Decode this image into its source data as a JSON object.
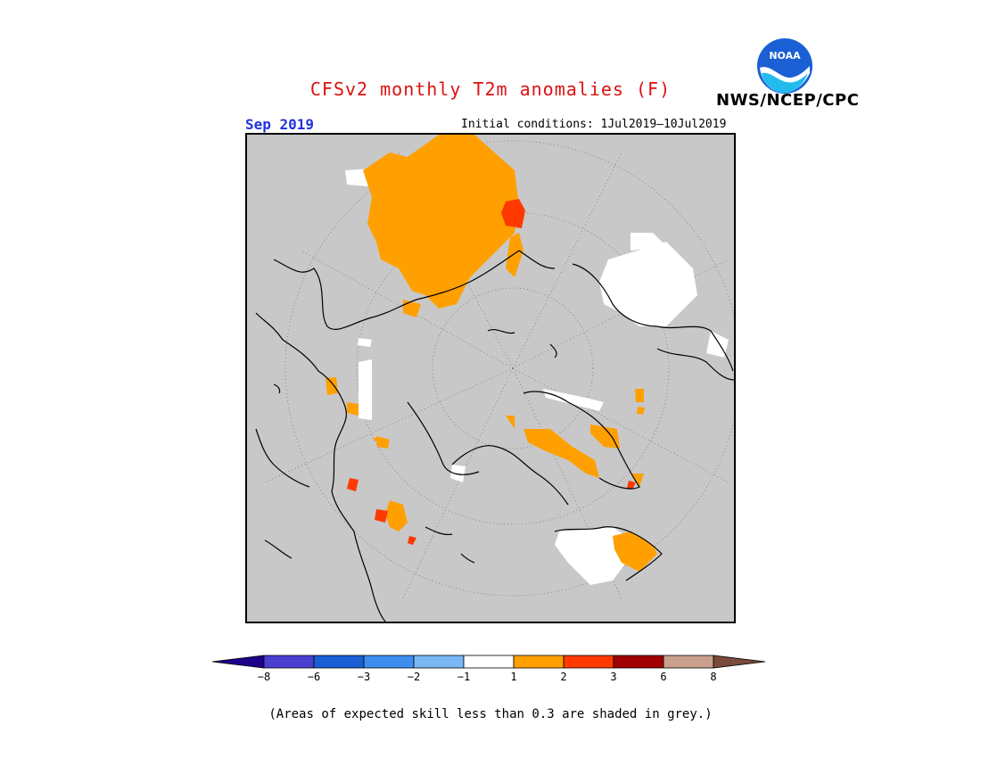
{
  "title": "CFSv2 monthly T2m anomalies (F)",
  "title_color": "#dd1111",
  "org_label": "NWS/NCEP/CPC",
  "logo_text": "NOAA",
  "valid_month": "Sep 2019",
  "valid_month_color": "#2233dd",
  "initial_conditions": "Initial conditions: 1Jul2019–10Jul2019",
  "map": {
    "projection": "north-polar-stereographic",
    "background_color": "#c8c8c8",
    "graticule": "dotted",
    "icon": "polar-map-icon"
  },
  "colorbar": {
    "colors": [
      "#1e008c",
      "#4b3fd0",
      "#1a5fd4",
      "#3d8ef0",
      "#7ab8f5",
      "#ffffff",
      "#ffa000",
      "#ff3a00",
      "#a00000",
      "#c8a08c",
      "#7a4a3a"
    ],
    "tick_labels": [
      "−8",
      "−6",
      "−3",
      "−2",
      "−1",
      "1",
      "2",
      "3",
      "6",
      "8"
    ]
  },
  "footnote": "(Areas of expected skill less than 0.3 are shaded in grey.)"
}
